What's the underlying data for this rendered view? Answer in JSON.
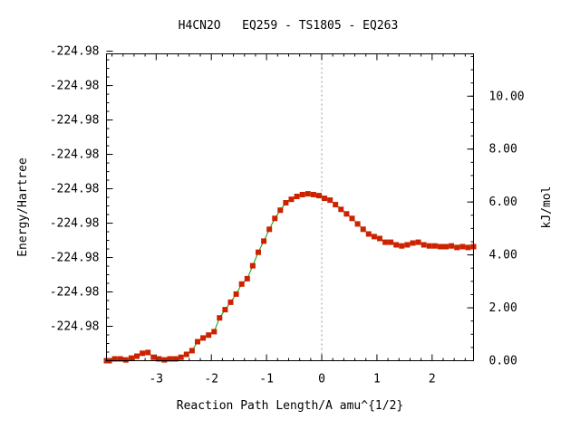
{
  "chart_data": {
    "type": "line",
    "title": "H4CN2O   EQ259 - TS1805 - EQ263",
    "xlabel": "Reaction Path Length/A amu^{1/2}",
    "ylabel_left": "Energy/Hartree",
    "ylabel_right": "kJ/mol",
    "xlim": [
      -3.9,
      2.75
    ],
    "right_ylim": [
      0.0,
      11.6
    ],
    "x_ticks": [
      -3,
      -2,
      -1,
      0,
      1,
      2
    ],
    "left_tick_values": [
      0.0,
      1.3,
      2.6,
      3.9,
      5.2,
      6.5,
      7.8,
      9.1,
      10.4,
      11.7
    ],
    "left_tick_labels": [
      "-224.98",
      "-224.98",
      "-224.98",
      "-224.98",
      "-224.98",
      "-224.98",
      "-224.98",
      "-224.98",
      "-224.98"
    ],
    "right_tick_values": [
      0.0,
      2.0,
      4.0,
      6.0,
      8.0,
      10.0
    ],
    "right_tick_labels": [
      "0.00",
      "2.00",
      "4.00",
      "6.00",
      "8.00",
      "10.00"
    ],
    "ts_marker_x": 0.0,
    "colors": {
      "line": "#00a000",
      "marker": "#cc2200",
      "ts_line": "#999999",
      "frame": "#000000"
    },
    "series": [
      {
        "x": [
          -3.9,
          -3.85,
          -3.75,
          -3.65,
          -3.55,
          -3.45,
          -3.35,
          -3.25,
          -3.15,
          -3.05,
          -2.95,
          -2.85,
          -2.75,
          -2.65,
          -2.55,
          -2.45,
          -2.35,
          -2.25,
          -2.15,
          -2.05,
          -1.95,
          -1.85,
          -1.75,
          -1.65,
          -1.55,
          -1.45,
          -1.35,
          -1.25,
          -1.15,
          -1.05,
          -0.95,
          -0.85,
          -0.75,
          -0.65,
          -0.55,
          -0.45,
          -0.35,
          -0.25,
          -0.15,
          -0.05,
          0.05,
          0.15,
          0.25,
          0.35,
          0.45,
          0.55,
          0.65,
          0.75,
          0.85,
          0.95,
          1.05,
          1.15,
          1.25,
          1.35,
          1.45,
          1.55,
          1.65,
          1.75,
          1.85,
          1.95,
          2.05,
          2.15,
          2.25,
          2.35,
          2.45,
          2.55,
          2.65,
          2.75
        ],
        "y": [
          0.0,
          0.0,
          0.07,
          0.07,
          0.03,
          0.1,
          0.17,
          0.28,
          0.31,
          0.13,
          0.07,
          0.03,
          0.07,
          0.07,
          0.13,
          0.24,
          0.38,
          0.72,
          0.86,
          0.97,
          1.1,
          1.62,
          1.93,
          2.21,
          2.52,
          2.9,
          3.1,
          3.59,
          4.1,
          4.52,
          4.97,
          5.38,
          5.69,
          5.97,
          6.1,
          6.21,
          6.28,
          6.31,
          6.28,
          6.24,
          6.14,
          6.07,
          5.9,
          5.72,
          5.55,
          5.38,
          5.17,
          4.97,
          4.79,
          4.69,
          4.62,
          4.48,
          4.48,
          4.38,
          4.34,
          4.38,
          4.45,
          4.48,
          4.38,
          4.34,
          4.34,
          4.31,
          4.31,
          4.34,
          4.28,
          4.31,
          4.28,
          4.31
        ]
      }
    ]
  }
}
